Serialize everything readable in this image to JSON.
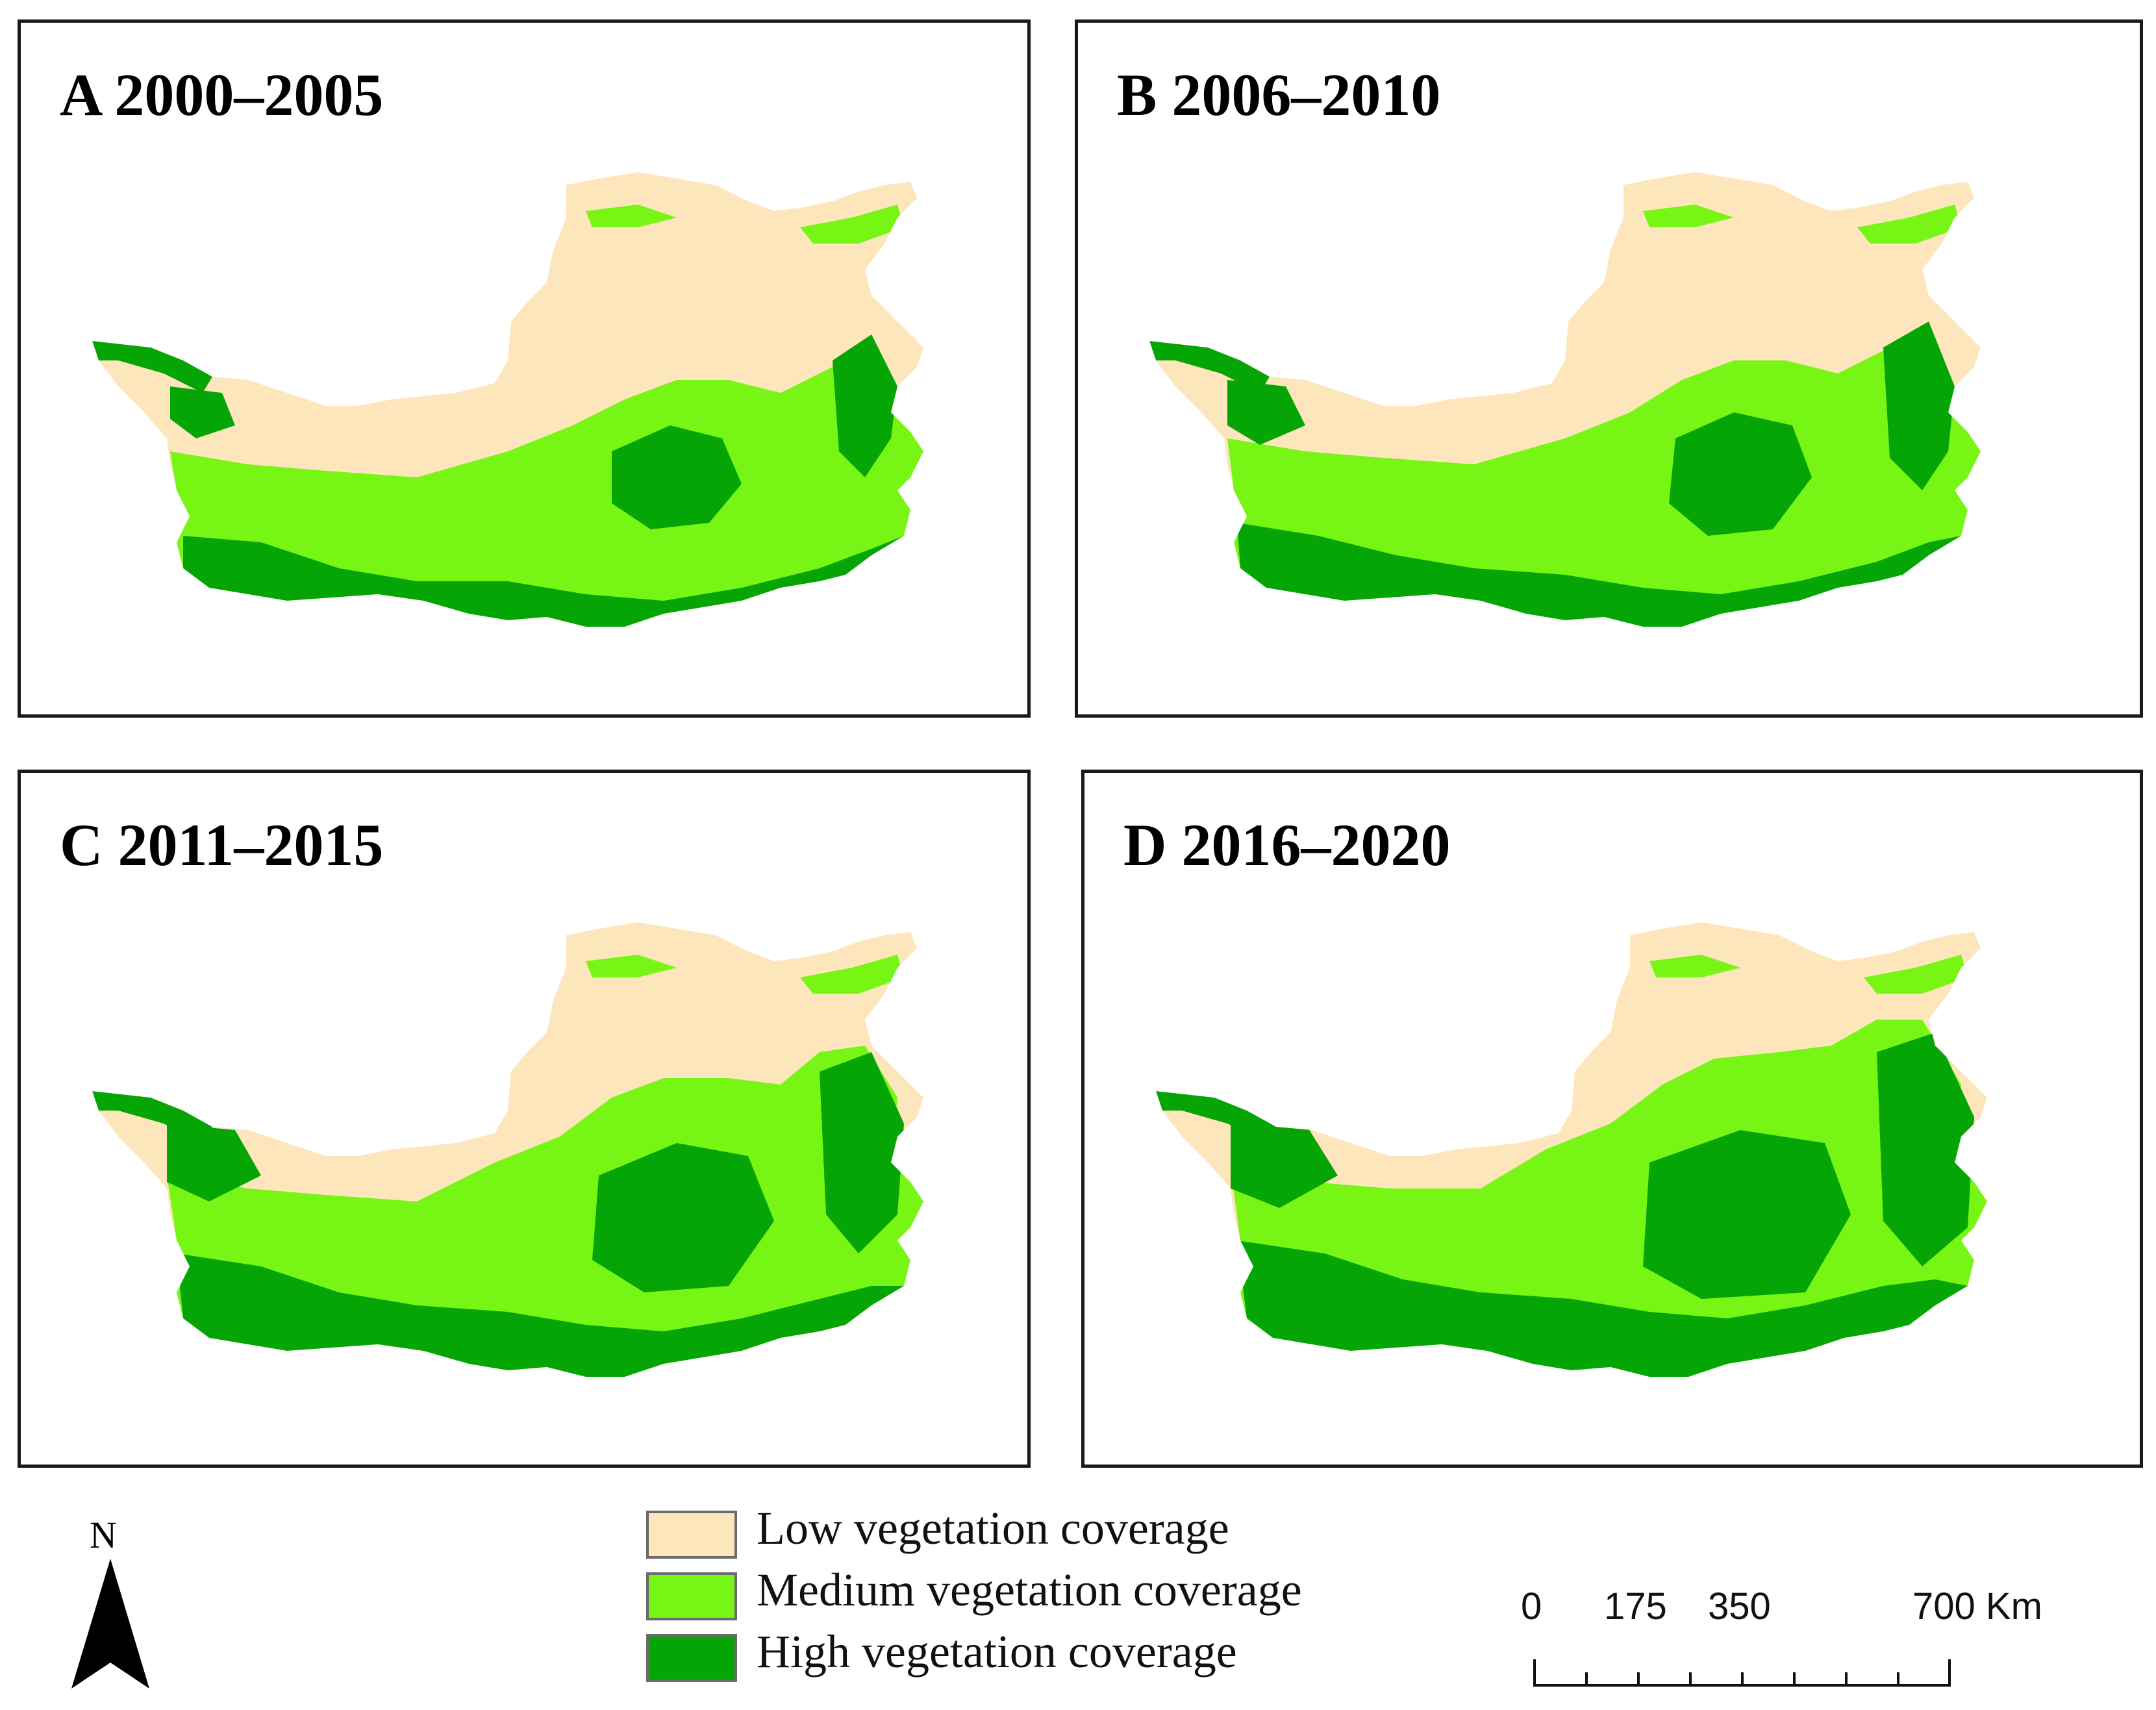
{
  "panels": [
    {
      "id": "A",
      "title": "A 2000–2005",
      "period": "2000–2005"
    },
    {
      "id": "B",
      "title": "B 2006–2010",
      "period": "2006–2010"
    },
    {
      "id": "C",
      "title": "C 2011–2015",
      "period": "2011–2015"
    },
    {
      "id": "D",
      "title": "D 2016–2020",
      "period": "2016–2020"
    }
  ],
  "north_arrow": {
    "label": "N"
  },
  "legend": [
    {
      "label": "Low vegetation coverage",
      "color": "#fde5bc"
    },
    {
      "label": "Medium vegetation coverage",
      "color": "#77f515"
    },
    {
      "label": "High vegetation coverage",
      "color": "#06a506"
    }
  ],
  "scale_bar": {
    "ticks": [
      "0",
      "175",
      "350",
      "700 Km"
    ]
  }
}
